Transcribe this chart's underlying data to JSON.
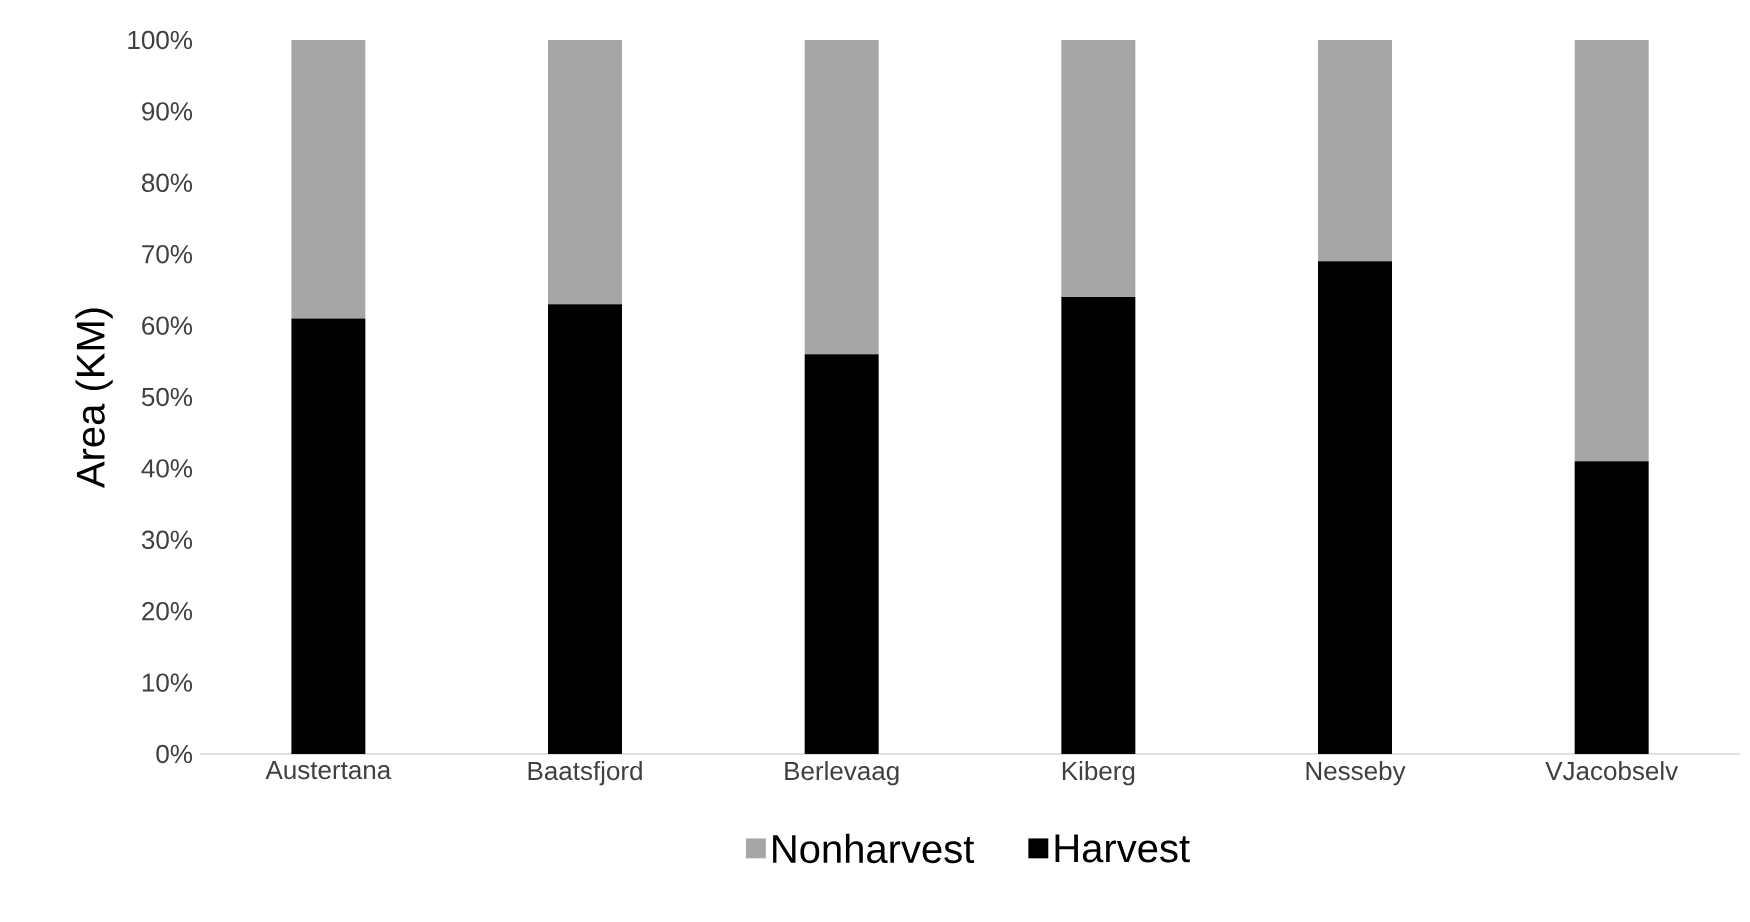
{
  "chart_data": {
    "type": "bar",
    "stacked": true,
    "ylabel": "Area (KM)",
    "categories": [
      "Austertana",
      "Baatsfjord",
      "Berlevaag",
      "Kiberg",
      "Nesseby",
      "VJacobselv"
    ],
    "series": [
      {
        "name": "Harvest",
        "color": "#000000",
        "values": [
          61,
          63,
          56,
          64,
          69,
          41
        ]
      },
      {
        "name": "Nonharvest",
        "color": "#a6a6a6",
        "values": [
          39,
          37,
          44,
          36,
          31,
          59
        ]
      }
    ],
    "ylim": [
      0,
      100
    ],
    "yticks": [
      {
        "value": 0,
        "label": "0%"
      },
      {
        "value": 10,
        "label": "10%"
      },
      {
        "value": 20,
        "label": "20%"
      },
      {
        "value": 30,
        "label": "30%"
      },
      {
        "value": 40,
        "label": "40%"
      },
      {
        "value": 50,
        "label": "50%"
      },
      {
        "value": 60,
        "label": "60%"
      },
      {
        "value": 70,
        "label": "70%"
      },
      {
        "value": 80,
        "label": "80%"
      },
      {
        "value": 90,
        "label": "90%"
      },
      {
        "value": 100,
        "label": "100%"
      }
    ],
    "legend": "bottom"
  }
}
